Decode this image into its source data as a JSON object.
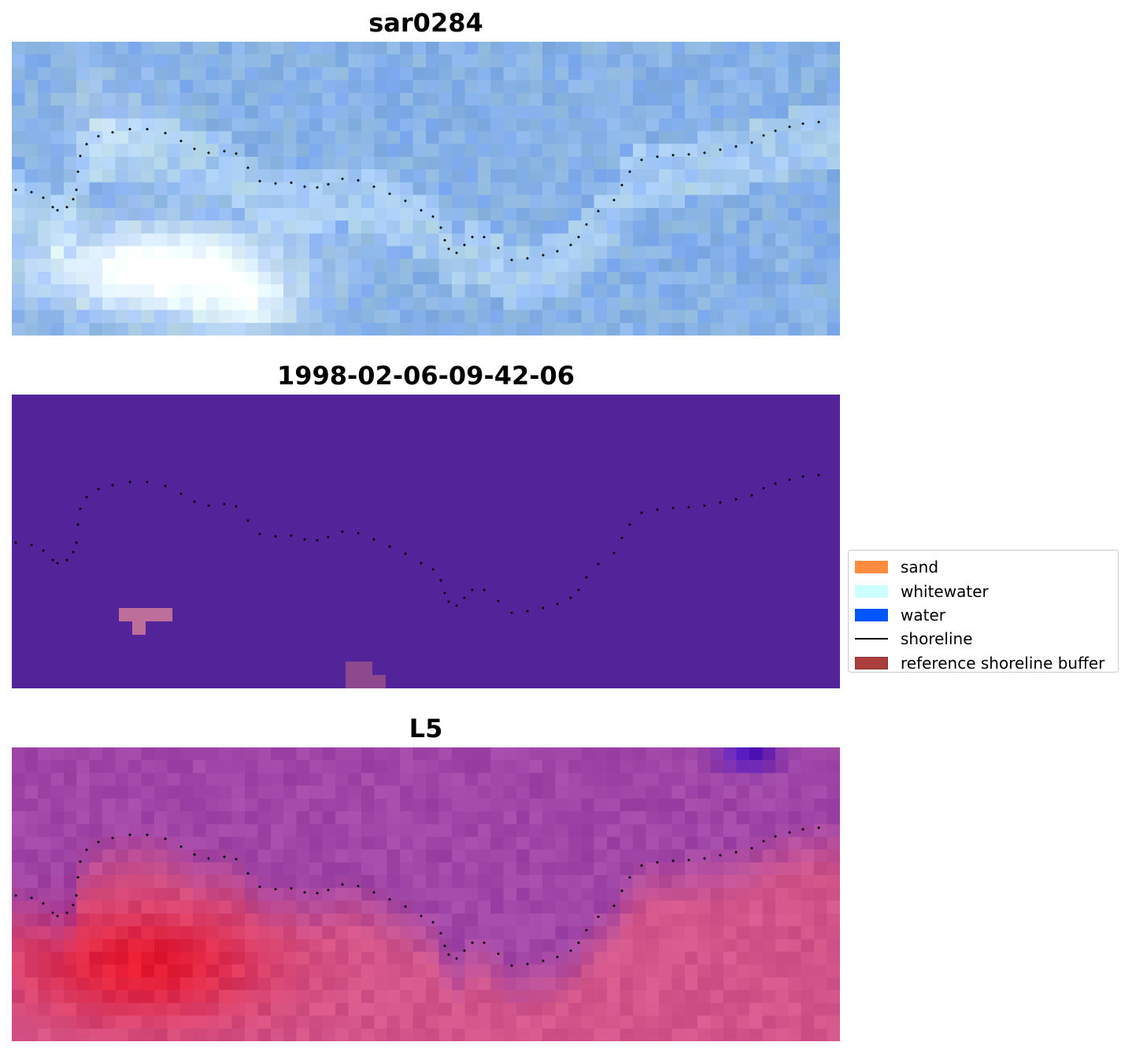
{
  "panels": [
    {
      "title": "sar0284",
      "kind": "rgb"
    },
    {
      "title": "1998-02-06-09-42-06",
      "kind": "classification"
    },
    {
      "title": "L5",
      "kind": "index"
    }
  ],
  "legend": {
    "items": [
      {
        "label": "sand",
        "color": "#ff8c3c",
        "type": "patch"
      },
      {
        "label": "whitewater",
        "color": "#ccffff",
        "type": "patch"
      },
      {
        "label": "water",
        "color": "#0055ff",
        "type": "patch"
      },
      {
        "label": "shoreline",
        "color": "#000000",
        "type": "line"
      },
      {
        "label": "reference shoreline buffer",
        "color": "#a52a2a",
        "type": "patch"
      }
    ]
  },
  "colors": {
    "classification_background": "#532399",
    "classification_patch": "#be6e9a",
    "classification_patch_2": "#8c4a8c"
  }
}
